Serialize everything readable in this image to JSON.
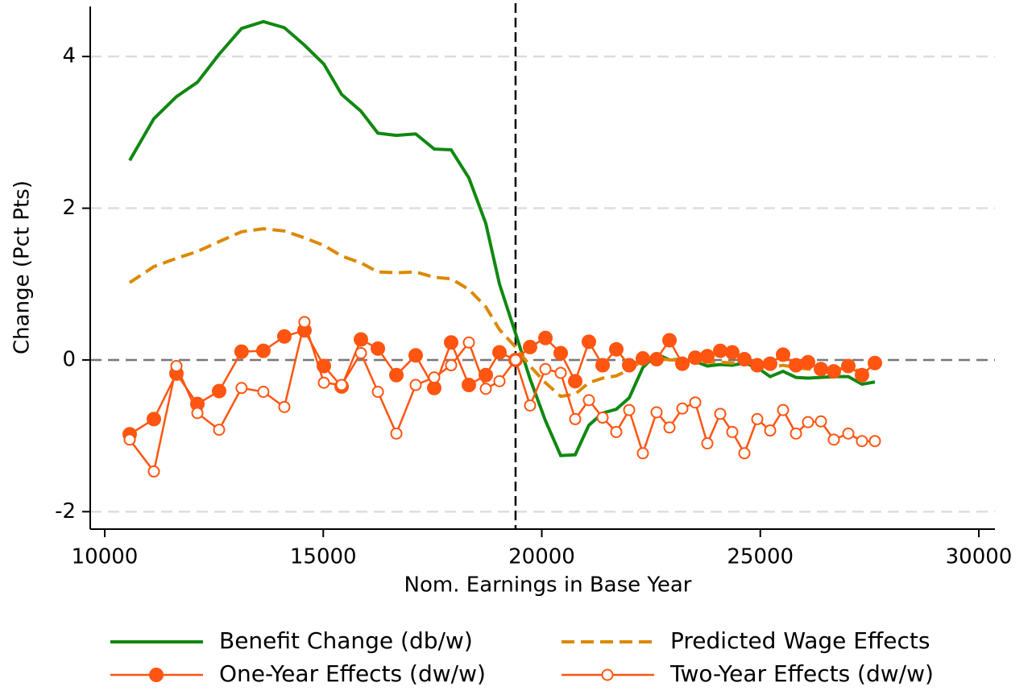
{
  "chart_data": {
    "type": "line",
    "xlabel": "Nom. Earnings in Base Year",
    "ylabel": "Change (Pct Pts)",
    "xlim": [
      9668,
      30369
    ],
    "ylim": [
      -2.23,
      4.66
    ],
    "xticks": [
      10000,
      15000,
      20000,
      25000,
      30000
    ],
    "yticks": [
      -2,
      0,
      2,
      4
    ],
    "grid": true,
    "grid_color": "#dddddd",
    "hline": 0,
    "vline": 19400,
    "legend": "bottom",
    "x": [
      10571,
      11124,
      11640,
      12120,
      12617,
      13130,
      13630,
      14110,
      14570,
      15014,
      15420,
      15862,
      16250,
      16673,
      17115,
      17539,
      17926,
      18332,
      18719,
      19032,
      19400,
      19732,
      20083,
      20433,
      20765,
      21078,
      21392,
      21705,
      22000,
      22313,
      22627,
      22922,
      23217,
      23512,
      23788,
      24083,
      24359,
      24636,
      24931,
      25226,
      25521,
      25816,
      26092,
      26387,
      26682,
      27014,
      27327,
      27622
    ],
    "series": [
      {
        "name": "Benefit Change (db/w)",
        "color": "#118811",
        "dash": false,
        "marker": "none",
        "values": [
          2.63,
          3.18,
          3.47,
          3.66,
          4.03,
          4.37,
          4.46,
          4.38,
          4.15,
          3.9,
          3.5,
          3.28,
          2.99,
          2.96,
          2.98,
          2.78,
          2.77,
          2.4,
          1.8,
          1.0,
          0.35,
          -0.25,
          -0.8,
          -1.26,
          -1.25,
          -0.86,
          -0.7,
          -0.65,
          -0.5,
          -0.1,
          0.08,
          0.0,
          0.01,
          -0.02,
          -0.08,
          -0.06,
          -0.07,
          -0.04,
          -0.1,
          -0.22,
          -0.15,
          -0.23,
          -0.24,
          -0.23,
          -0.22,
          -0.22,
          -0.32,
          -0.29
        ]
      },
      {
        "name": "Predicted Wage Effects",
        "color": "#dd8800",
        "dash": true,
        "marker": "none",
        "values": [
          1.02,
          1.23,
          1.34,
          1.43,
          1.56,
          1.69,
          1.73,
          1.7,
          1.61,
          1.51,
          1.37,
          1.28,
          1.16,
          1.15,
          1.16,
          1.09,
          1.07,
          0.93,
          0.7,
          0.4,
          0.17,
          -0.08,
          -0.3,
          -0.48,
          -0.45,
          -0.3,
          -0.24,
          -0.21,
          -0.13,
          0.0,
          0.03,
          0.0,
          0.0,
          -0.01,
          -0.03,
          -0.03,
          -0.04,
          -0.03,
          -0.06,
          -0.1,
          -0.07,
          -0.1,
          -0.12,
          -0.12,
          -0.12,
          -0.11,
          -0.15,
          -0.13
        ]
      },
      {
        "name": "One-Year Effects (dw/w)",
        "color": "#ff5511",
        "dash": false,
        "marker": "filled",
        "values": [
          -0.98,
          -0.78,
          -0.18,
          -0.58,
          -0.41,
          0.11,
          0.12,
          0.31,
          0.39,
          -0.08,
          -0.35,
          0.27,
          0.15,
          -0.2,
          0.06,
          -0.37,
          0.23,
          -0.33,
          -0.2,
          0.1,
          0.0,
          0.17,
          0.29,
          0.09,
          -0.28,
          0.24,
          -0.07,
          0.14,
          -0.07,
          0.02,
          0.01,
          0.26,
          -0.05,
          0.03,
          0.05,
          0.12,
          0.1,
          0.01,
          -0.07,
          -0.05,
          0.07,
          -0.07,
          -0.03,
          -0.12,
          -0.15,
          -0.08,
          -0.2,
          -0.04
        ]
      },
      {
        "name": "Two-Year Effects (dw/w)",
        "color": "#ff5511",
        "dash": false,
        "marker": "hollow",
        "values": [
          -1.05,
          -1.47,
          -0.08,
          -0.7,
          -0.92,
          -0.37,
          -0.42,
          -0.62,
          0.5,
          -0.3,
          -0.33,
          0.09,
          -0.42,
          -0.97,
          -0.33,
          -0.23,
          -0.07,
          0.23,
          -0.38,
          -0.28,
          0.0,
          -0.6,
          -0.12,
          -0.17,
          -0.78,
          -0.53,
          -0.76,
          -0.95,
          -0.66,
          -1.23,
          -0.69,
          -0.89,
          -0.64,
          -0.56,
          -1.1,
          -0.71,
          -0.95,
          -1.23,
          -0.78,
          -0.93,
          -0.66,
          -0.97,
          -0.82,
          -0.81,
          -1.05,
          -0.97,
          -1.07,
          -1.07
        ]
      }
    ]
  }
}
